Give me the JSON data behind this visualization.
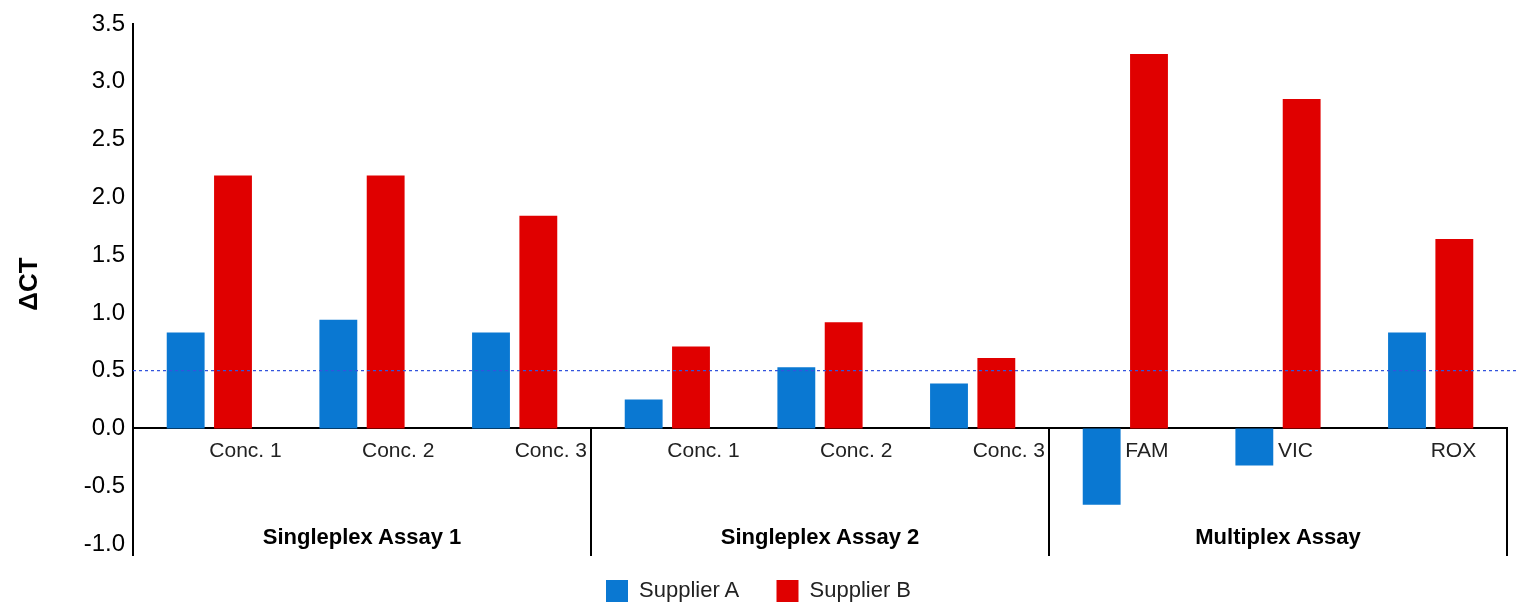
{
  "chart_data": {
    "type": "bar",
    "ylabel": "ΔCT",
    "categories": [
      "Conc. 1",
      "Conc. 2",
      "Conc. 3",
      "Conc. 1",
      "Conc. 2",
      "Conc. 3",
      "FAM",
      "VIC",
      "ROX"
    ],
    "series": [
      {
        "name": "Supplier A",
        "color": "#0a78d2",
        "values": [
          0.83,
          0.94,
          0.83,
          0.25,
          0.53,
          0.39,
          -0.66,
          -0.32,
          0.83
        ]
      },
      {
        "name": "Supplier B",
        "color": "#e00000",
        "values": [
          2.19,
          2.19,
          1.84,
          0.71,
          0.92,
          0.61,
          3.24,
          2.85,
          1.64
        ]
      }
    ],
    "ylim": [
      -1,
      3.5
    ],
    "yticks": [
      {
        "value": -1,
        "label": "-1.0"
      },
      {
        "value": -0.5,
        "label": "-0.5"
      },
      {
        "value": 0,
        "label": "0.0"
      },
      {
        "value": 0.5,
        "label": "0.5"
      },
      {
        "value": 1,
        "label": "1.0"
      },
      {
        "value": 1.5,
        "label": "1.5"
      },
      {
        "value": 2,
        "label": "2.0"
      },
      {
        "value": 2.5,
        "label": "2.5"
      },
      {
        "value": 3,
        "label": "3.0"
      },
      {
        "value": 3.5,
        "label": "3.5"
      }
    ],
    "ref_lines": [
      {
        "axis": "y",
        "value": 0.5,
        "color": "#3355dd",
        "line_style": "dashed"
      }
    ],
    "annotations": [
      "Singleplex Assay 1",
      "Singleplex Assay 2",
      "Multiplex Assay"
    ],
    "grid": false,
    "legend": "bottom"
  }
}
